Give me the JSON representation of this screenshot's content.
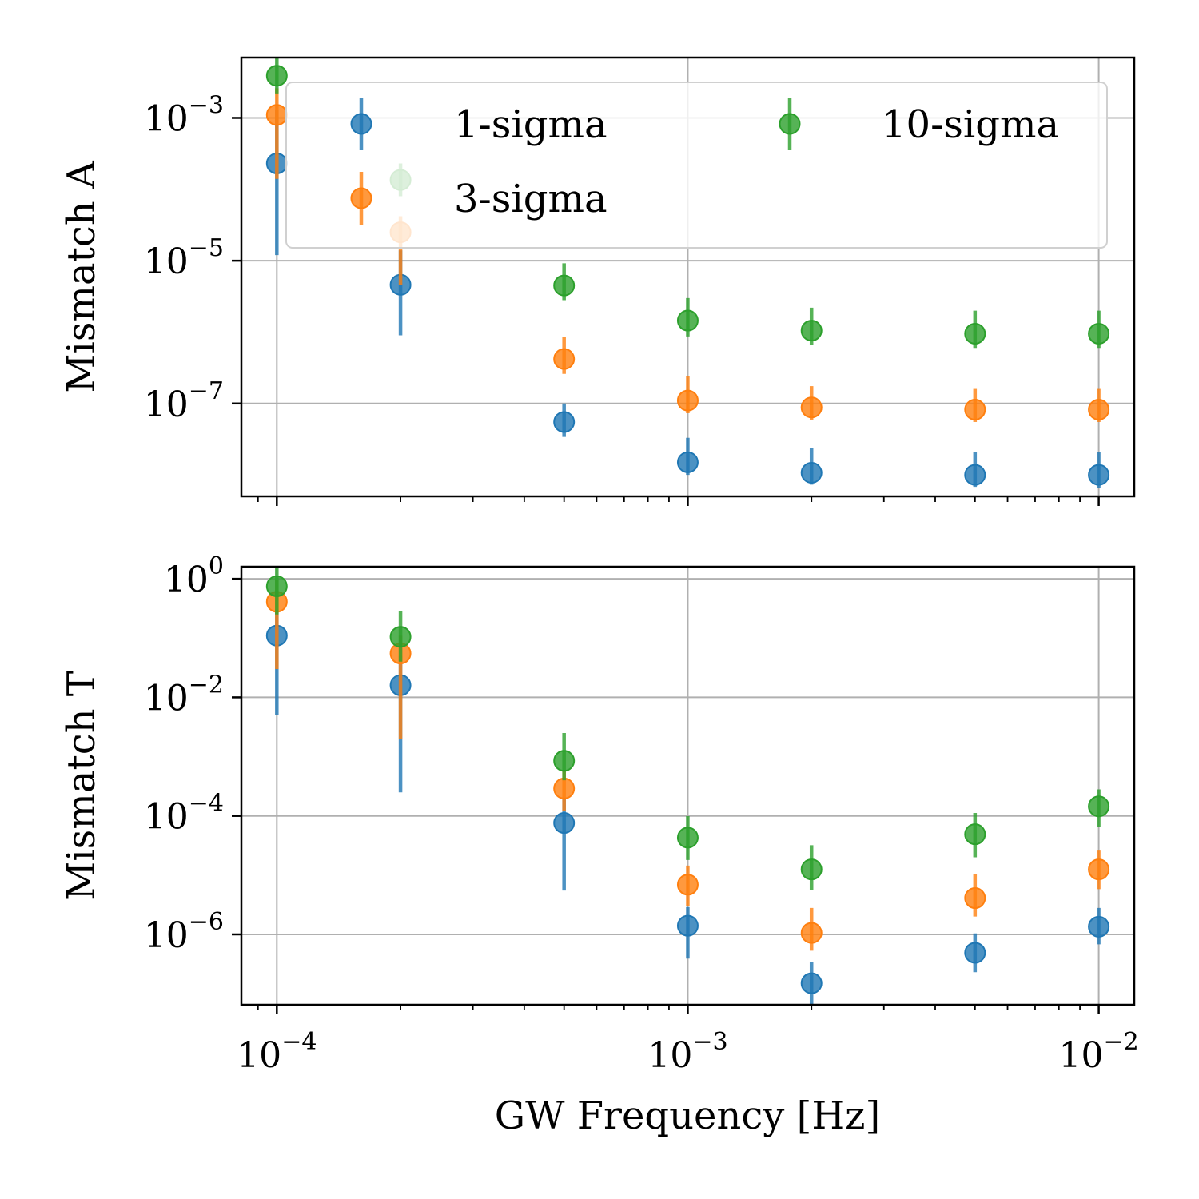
{
  "colors": {
    "1-sigma": "#1f77b4",
    "3-sigma": "#ff7f0e",
    "10-sigma": "#2ca02c",
    "grid": "#b0b0b0",
    "frame": "#000000"
  },
  "xlabel": "GW Frequency [Hz]",
  "chart_data": [
    {
      "type": "scatter",
      "name": "top",
      "ylabel": "Mismatch A",
      "xscale": "log",
      "yscale": "log",
      "xlim": [
        8.2e-05,
        0.0122
      ],
      "ylim": [
        5e-09,
        0.007
      ],
      "xticks": [
        {
          "value": 0.0001,
          "base": "10",
          "exp": "−4"
        },
        {
          "value": 0.001,
          "base": "10",
          "exp": "−3"
        },
        {
          "value": 0.01,
          "base": "10",
          "exp": "−2"
        }
      ],
      "yticks": [
        {
          "value": 0.001,
          "base": "10",
          "exp": "−3"
        },
        {
          "value": 1e-05,
          "base": "10",
          "exp": "−5"
        },
        {
          "value": 1e-07,
          "base": "10",
          "exp": "−7"
        }
      ],
      "grid": true,
      "show_xtick_labels": false,
      "legend": {
        "placement": "upper right",
        "columns": 2,
        "entries": [
          "1-sigma",
          "3-sigma",
          "10-sigma"
        ]
      },
      "x": [
        0.0001,
        0.0002,
        0.0005,
        0.001,
        0.002,
        0.005,
        0.01
      ],
      "series": [
        {
          "name": "1-sigma",
          "y": [
            0.00023,
            4.6e-06,
            5.5e-08,
            1.5e-08,
            1.07e-08,
            1e-08,
            1e-08
          ],
          "err_low": [
            1.2e-05,
            9e-07,
            3.4e-08,
            1e-08,
            7.3e-09,
            6.8e-09,
            6.5e-09
          ],
          "err_high": [
            0.0013,
            1.4e-05,
            1e-07,
            3.3e-08,
            2.4e-08,
            2.1e-08,
            2.1e-08
          ]
        },
        {
          "name": "3-sigma",
          "y": [
            0.0011,
            2.5e-05,
            4.2e-07,
            1.1e-07,
            8.8e-08,
            8.2e-08,
            8.2e-08
          ],
          "err_low": [
            0.00014,
            4.6e-06,
            2.6e-07,
            7.3e-08,
            5.9e-08,
            5.5e-08,
            5.5e-08
          ],
          "err_high": [
            0.0026,
            4.2e-05,
            8.5e-07,
            2.4e-07,
            1.75e-07,
            1.6e-07,
            1.6e-07
          ]
        },
        {
          "name": "10-sigma",
          "y": [
            0.0039,
            0.000135,
            4.5e-06,
            1.45e-06,
            1.05e-06,
            9.5e-07,
            9.5e-07
          ],
          "err_low": [
            0.0022,
            8e-05,
            2.8e-06,
            8.7e-07,
            6.6e-07,
            6e-07,
            6e-07
          ],
          "err_high": [
            0.007,
            0.00023,
            9.2e-06,
            3e-06,
            2.2e-06,
            2e-06,
            2e-06
          ]
        }
      ]
    },
    {
      "type": "scatter",
      "name": "bottom",
      "ylabel": "Mismatch T",
      "xscale": "log",
      "yscale": "log",
      "xlim": [
        8.2e-05,
        0.0122
      ],
      "ylim": [
        6.5e-08,
        1.6
      ],
      "xticks": [
        {
          "value": 0.0001,
          "base": "10",
          "exp": "−4"
        },
        {
          "value": 0.001,
          "base": "10",
          "exp": "−3"
        },
        {
          "value": 0.01,
          "base": "10",
          "exp": "−2"
        }
      ],
      "yticks": [
        {
          "value": 1,
          "base": "10",
          "exp": "0"
        },
        {
          "value": 0.01,
          "base": "10",
          "exp": "−2"
        },
        {
          "value": 0.0001,
          "base": "10",
          "exp": "−4"
        },
        {
          "value": 1e-06,
          "base": "10",
          "exp": "−6"
        }
      ],
      "grid": true,
      "show_xtick_labels": true,
      "x": [
        0.0001,
        0.0002,
        0.0005,
        0.001,
        0.002,
        0.005,
        0.01
      ],
      "series": [
        {
          "name": "1-sigma",
          "y": [
            0.11,
            0.016,
            7.6e-05,
            1.4e-06,
            1.5e-07,
            4.9e-07,
            1.35e-06
          ],
          "err_low": [
            0.005,
            0.00025,
            5.5e-06,
            3.9e-07,
            6.5e-08,
            2.3e-07,
            6.8e-07
          ],
          "err_high": [
            0.3,
            0.05,
            0.0002,
            2.9e-06,
            3.4e-07,
            1.04e-06,
            2.8e-06
          ]
        },
        {
          "name": "3-sigma",
          "y": [
            0.41,
            0.055,
            0.00029,
            6.9e-06,
            1.06e-06,
            4.1e-06,
            1.25e-05
          ],
          "err_low": [
            0.03,
            0.002,
            0.00012,
            3e-06,
            5.3e-07,
            2e-06,
            5.8e-06
          ],
          "err_high": [
            0.95,
            0.11,
            0.0006,
            1.45e-05,
            2.8e-06,
            1.05e-05,
            2.6e-05
          ]
        },
        {
          "name": "10-sigma",
          "y": [
            0.75,
            0.105,
            0.00085,
            4.3e-05,
            1.25e-05,
            4.9e-05,
            0.000145
          ],
          "err_low": [
            0.25,
            0.04,
            0.0004,
            1.8e-05,
            5.6e-06,
            2e-05,
            6.6e-05
          ],
          "err_high": [
            1.6,
            0.29,
            0.0025,
            9.9e-05,
            3.2e-05,
            0.000112,
            0.00028
          ]
        }
      ]
    }
  ]
}
